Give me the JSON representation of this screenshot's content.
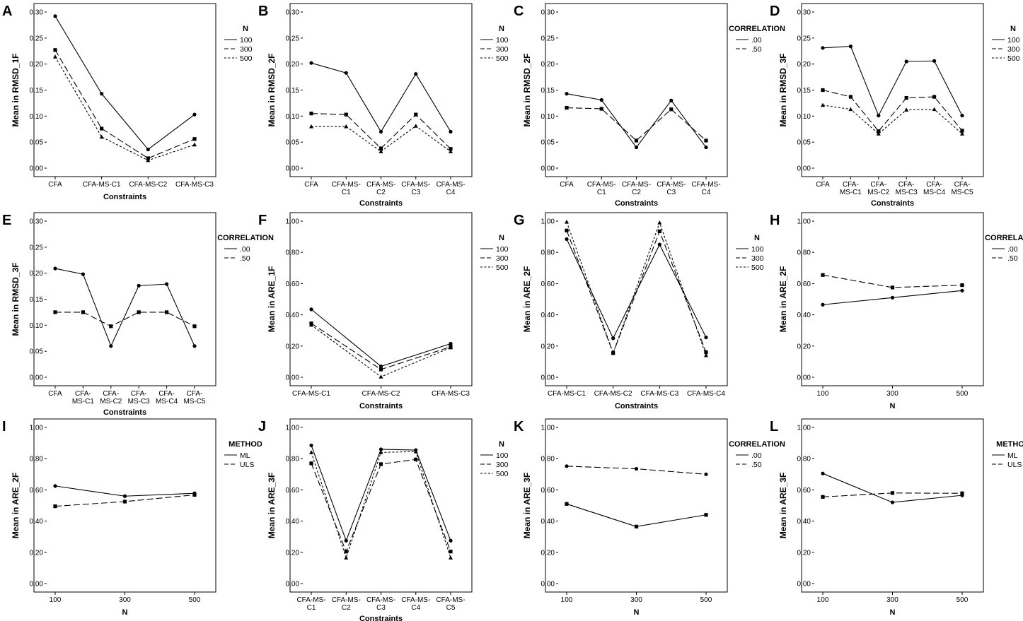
{
  "figure": {
    "legend_titles": {
      "N": "N",
      "CORRELATION": "CORRELATION",
      "METHOD": "METHOD"
    }
  },
  "chart_data": [
    {
      "panel": "A",
      "type": "line",
      "title": "",
      "ylabel": "Mean in RMSD_1F",
      "xlabel": "Constraints",
      "categories": [
        [
          "CFA"
        ],
        [
          "CFA-MS-C1"
        ],
        [
          "CFA-MS-C2"
        ],
        [
          "CFA-MS-C3"
        ]
      ],
      "ylim": [
        0,
        0.3
      ],
      "yticks": [
        "0.00",
        "0.05",
        "0.10",
        "0.15",
        "0.20",
        "0.25",
        "0.30"
      ],
      "yticks_values": [
        0,
        0.05,
        0.1,
        0.15,
        0.2,
        0.25,
        0.3
      ],
      "legend_title": "N",
      "series": [
        {
          "name": "100",
          "style": "solid",
          "marker": "circle",
          "values": [
            0.292,
            0.143,
            0.036,
            0.103
          ]
        },
        {
          "name": "300",
          "style": "dashed",
          "marker": "square",
          "values": [
            0.227,
            0.076,
            0.019,
            0.056
          ]
        },
        {
          "name": "500",
          "style": "dotted",
          "marker": "triangle",
          "values": [
            0.214,
            0.06,
            0.015,
            0.045
          ]
        }
      ]
    },
    {
      "panel": "B",
      "type": "line",
      "title": "",
      "ylabel": "Mean in RMSD_2F",
      "xlabel": "Constraints",
      "categories": [
        [
          "CFA"
        ],
        [
          "CFA-MS-",
          "C1"
        ],
        [
          "CFA-MS-",
          "C2"
        ],
        [
          "CFA-MS-",
          "C3"
        ],
        [
          "CFA-MS-",
          "C4"
        ]
      ],
      "ylim": [
        0,
        0.3
      ],
      "yticks": [
        "0.00",
        "0.05",
        "0.10",
        "0.15",
        "0.20",
        "0.25",
        "0.30"
      ],
      "yticks_values": [
        0,
        0.05,
        0.1,
        0.15,
        0.2,
        0.25,
        0.3
      ],
      "legend_title": "N",
      "series": [
        {
          "name": "100",
          "style": "solid",
          "marker": "circle",
          "values": [
            0.202,
            0.183,
            0.07,
            0.181,
            0.07
          ]
        },
        {
          "name": "300",
          "style": "dashed",
          "marker": "square",
          "values": [
            0.105,
            0.103,
            0.038,
            0.103,
            0.037
          ]
        },
        {
          "name": "500",
          "style": "dotted",
          "marker": "triangle",
          "values": [
            0.08,
            0.08,
            0.032,
            0.081,
            0.032
          ]
        }
      ]
    },
    {
      "panel": "C",
      "type": "line",
      "title": "",
      "ylabel": "Mean in RMSD_2F",
      "xlabel": "Constraints",
      "categories": [
        [
          "CFA"
        ],
        [
          "CFA-MS-",
          "C1"
        ],
        [
          "CFA-MS-",
          "C2"
        ],
        [
          "CFA-MS-",
          "C3"
        ],
        [
          "CFA-MS-",
          "C4"
        ]
      ],
      "ylim": [
        0,
        0.3
      ],
      "yticks": [
        "0.00",
        "0.05",
        "0.10",
        "0.15",
        "0.20",
        "0.25",
        "0.30"
      ],
      "yticks_values": [
        0,
        0.05,
        0.1,
        0.15,
        0.2,
        0.25,
        0.3
      ],
      "legend_title": "CORRELATION",
      "series": [
        {
          "name": ".00",
          "style": "solid",
          "marker": "circle",
          "values": [
            0.143,
            0.131,
            0.04,
            0.13,
            0.04
          ]
        },
        {
          "name": ".50",
          "style": "dashed",
          "marker": "square",
          "values": [
            0.116,
            0.114,
            0.053,
            0.113,
            0.053
          ]
        }
      ]
    },
    {
      "panel": "D",
      "type": "line",
      "title": "",
      "ylabel": "Mean in RMSD_3F",
      "xlabel": "Constraints",
      "categories": [
        [
          "CFA"
        ],
        [
          "CFA-",
          "MS-C1"
        ],
        [
          "CFA-",
          "MS-C2"
        ],
        [
          "CFA-",
          "MS-C3"
        ],
        [
          "CFA-",
          "MS-C4"
        ],
        [
          "CFA-",
          "MS-C5"
        ]
      ],
      "ylim": [
        0,
        0.3
      ],
      "yticks": [
        "0.00",
        "0.05",
        "0.10",
        "0.15",
        "0.20",
        "0.25",
        "0.30"
      ],
      "yticks_values": [
        0,
        0.05,
        0.1,
        0.15,
        0.2,
        0.25,
        0.3
      ],
      "legend_title": "N",
      "series": [
        {
          "name": "100",
          "style": "solid",
          "marker": "circle",
          "values": [
            0.231,
            0.234,
            0.101,
            0.205,
            0.206,
            0.101
          ]
        },
        {
          "name": "300",
          "style": "dashed",
          "marker": "square",
          "values": [
            0.15,
            0.137,
            0.071,
            0.135,
            0.137,
            0.072
          ]
        },
        {
          "name": "500",
          "style": "dotted",
          "marker": "triangle",
          "values": [
            0.121,
            0.113,
            0.066,
            0.112,
            0.113,
            0.066
          ]
        }
      ]
    },
    {
      "panel": "E",
      "type": "line",
      "title": "",
      "ylabel": "Mean in RMSD_3F",
      "xlabel": "Constraints",
      "categories": [
        [
          "CFA"
        ],
        [
          "CFA-",
          "MS-C1"
        ],
        [
          "CFA-",
          "MS-C2"
        ],
        [
          "CFA-",
          "MS-C3"
        ],
        [
          "CFA-",
          "MS-C4"
        ],
        [
          "CFA-",
          "MS-C5"
        ]
      ],
      "ylim": [
        0,
        0.3
      ],
      "yticks": [
        "0.00",
        "0.05",
        "0.10",
        "0.15",
        "0.20",
        "0.25",
        "0.30"
      ],
      "yticks_values": [
        0,
        0.05,
        0.1,
        0.15,
        0.2,
        0.25,
        0.3
      ],
      "legend_title": "CORRELATION",
      "series": [
        {
          "name": ".00",
          "style": "solid",
          "marker": "circle",
          "values": [
            0.209,
            0.198,
            0.06,
            0.176,
            0.179,
            0.06
          ]
        },
        {
          "name": ".50",
          "style": "dashed",
          "marker": "square",
          "values": [
            0.125,
            0.125,
            0.098,
            0.125,
            0.125,
            0.098
          ]
        }
      ]
    },
    {
      "panel": "F",
      "type": "line",
      "title": "",
      "ylabel": "Mean in ARE_1F",
      "xlabel": "Constraints",
      "categories": [
        [
          "CFA-MS-C1"
        ],
        [
          "CFA-MS-C2"
        ],
        [
          "CFA-MS-C3"
        ]
      ],
      "ylim": [
        0,
        1.0
      ],
      "yticks": [
        "0.00",
        "0.20",
        "0.40",
        "0.60",
        "0.80",
        "1.00"
      ],
      "yticks_values": [
        0,
        0.2,
        0.4,
        0.6,
        0.8,
        1.0
      ],
      "legend_title": "N",
      "series": [
        {
          "name": "100",
          "style": "solid",
          "marker": "circle",
          "values": [
            0.435,
            0.07,
            0.215
          ]
        },
        {
          "name": "300",
          "style": "dashed",
          "marker": "square",
          "values": [
            0.345,
            0.05,
            0.195
          ]
        },
        {
          "name": "500",
          "style": "dotted",
          "marker": "triangle",
          "values": [
            0.335,
            0.003,
            0.19
          ]
        }
      ]
    },
    {
      "panel": "G",
      "type": "line",
      "title": "",
      "ylabel": "Mean in ARE_2F",
      "xlabel": "Constraints",
      "categories": [
        [
          "CFA-MS-C1"
        ],
        [
          "CFA-MS-C2"
        ],
        [
          "CFA-MS-C3"
        ],
        [
          "CFA-MS-C4"
        ]
      ],
      "ylim": [
        0,
        1.0
      ],
      "yticks": [
        "0.00",
        "0.20",
        "0.40",
        "0.60",
        "0.80",
        "1.00"
      ],
      "yticks_values": [
        0,
        0.2,
        0.4,
        0.6,
        0.8,
        1.0
      ],
      "legend_title": "N",
      "series": [
        {
          "name": "100",
          "style": "solid",
          "marker": "circle",
          "values": [
            0.885,
            0.25,
            0.85,
            0.255
          ]
        },
        {
          "name": "300",
          "style": "dashed",
          "marker": "square",
          "values": [
            0.94,
            0.155,
            0.935,
            0.16
          ]
        },
        {
          "name": "500",
          "style": "dotted",
          "marker": "triangle",
          "values": [
            0.995,
            0.155,
            0.99,
            0.14
          ]
        }
      ]
    },
    {
      "panel": "H",
      "type": "line",
      "title": "",
      "ylabel": "Mean in ARE_2F",
      "xlabel": "N",
      "categories": [
        [
          "100"
        ],
        [
          "300"
        ],
        [
          "500"
        ]
      ],
      "ylim": [
        0,
        1.0
      ],
      "yticks": [
        "0.00",
        "0.20",
        "0.40",
        "0.60",
        "0.80",
        "1.00"
      ],
      "yticks_values": [
        0,
        0.2,
        0.4,
        0.6,
        0.8,
        1.0
      ],
      "legend_title": "CORRELATION",
      "series": [
        {
          "name": ".00",
          "style": "solid",
          "marker": "circle",
          "values": [
            0.465,
            0.51,
            0.555
          ]
        },
        {
          "name": ".50",
          "style": "dashed",
          "marker": "square",
          "values": [
            0.655,
            0.575,
            0.59
          ]
        }
      ]
    },
    {
      "panel": "I",
      "type": "line",
      "title": "",
      "ylabel": "Mean in ARE_2F",
      "xlabel": "N",
      "categories": [
        [
          "100"
        ],
        [
          "300"
        ],
        [
          "500"
        ]
      ],
      "ylim": [
        0,
        1.0
      ],
      "yticks": [
        "0.00",
        "0.20",
        "0.40",
        "0.60",
        "0.80",
        "1.00"
      ],
      "yticks_values": [
        0,
        0.2,
        0.4,
        0.6,
        0.8,
        1.0
      ],
      "legend_title": "METHOD",
      "series": [
        {
          "name": "ML",
          "style": "solid",
          "marker": "circle",
          "values": [
            0.625,
            0.56,
            0.578
          ]
        },
        {
          "name": "ULS",
          "style": "dashed",
          "marker": "square",
          "values": [
            0.495,
            0.525,
            0.568
          ]
        }
      ]
    },
    {
      "panel": "J",
      "type": "line",
      "title": "",
      "ylabel": "Mean in ARE_3F",
      "xlabel": "Constraints",
      "categories": [
        [
          "CFA-MS-",
          "C1"
        ],
        [
          "CFA-MS-",
          "C2"
        ],
        [
          "CFA-MS-",
          "C3"
        ],
        [
          "CFA-MS-",
          "C4"
        ],
        [
          "CFA-MS-",
          "C5"
        ]
      ],
      "ylim": [
        0,
        1.0
      ],
      "yticks": [
        "0.00",
        "0.20",
        "0.40",
        "0.60",
        "0.80",
        "1.00"
      ],
      "yticks_values": [
        0,
        0.2,
        0.4,
        0.6,
        0.8,
        1.0
      ],
      "legend_title": "N",
      "series": [
        {
          "name": "100",
          "style": "solid",
          "marker": "circle",
          "values": [
            0.885,
            0.275,
            0.86,
            0.855,
            0.275
          ]
        },
        {
          "name": "300",
          "style": "dashed",
          "marker": "square",
          "values": [
            0.77,
            0.205,
            0.765,
            0.795,
            0.205
          ]
        },
        {
          "name": "500",
          "style": "dotted",
          "marker": "triangle",
          "values": [
            0.84,
            0.165,
            0.84,
            0.845,
            0.165
          ]
        }
      ]
    },
    {
      "panel": "K",
      "type": "line",
      "title": "",
      "ylabel": "Mean in ARE_3F",
      "xlabel": "N",
      "categories": [
        [
          "100"
        ],
        [
          "300"
        ],
        [
          "500"
        ]
      ],
      "ylim": [
        0,
        1.0
      ],
      "yticks": [
        "0.00",
        "0.20",
        "0.40",
        "0.60",
        "0.80",
        "1.00"
      ],
      "yticks_values": [
        0,
        0.2,
        0.4,
        0.6,
        0.8,
        1.0
      ],
      "legend_title": "CORRELATION",
      "series": [
        {
          "name": ".00",
          "style": "solid",
          "marker": "square",
          "values": [
            0.51,
            0.365,
            0.44
          ]
        },
        {
          "name": ".50",
          "style": "dashed",
          "marker": "circle",
          "values": [
            0.752,
            0.735,
            0.7
          ]
        }
      ]
    },
    {
      "panel": "L",
      "type": "line",
      "title": "",
      "ylabel": "Mean in ARE_3F",
      "xlabel": "N",
      "categories": [
        [
          "100"
        ],
        [
          "300"
        ],
        [
          "500"
        ]
      ],
      "ylim": [
        0,
        1.0
      ],
      "yticks": [
        "0.00",
        "0.20",
        "0.40",
        "0.60",
        "0.80",
        "1.00"
      ],
      "yticks_values": [
        0,
        0.2,
        0.4,
        0.6,
        0.8,
        1.0
      ],
      "legend_title": "METHOD",
      "series": [
        {
          "name": "ML",
          "style": "solid",
          "marker": "circle",
          "values": [
            0.705,
            0.52,
            0.565
          ]
        },
        {
          "name": "ULS",
          "style": "dashed",
          "marker": "square",
          "values": [
            0.555,
            0.58,
            0.578
          ]
        }
      ]
    }
  ]
}
